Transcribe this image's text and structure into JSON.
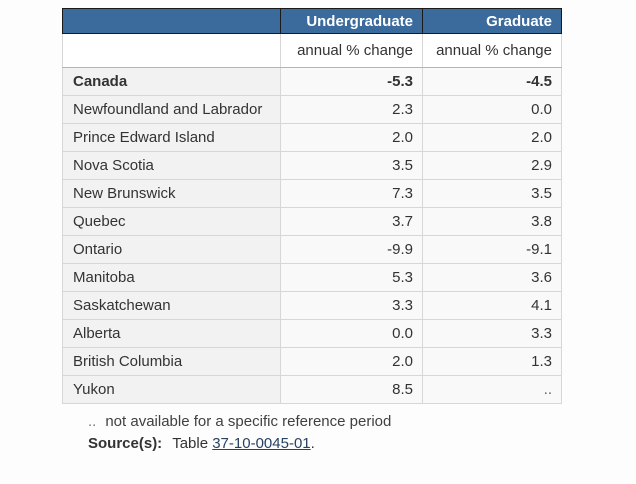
{
  "chart_data": {
    "type": "table",
    "columns": [
      "Undergraduate",
      "Graduate"
    ],
    "units": [
      "annual % change",
      "annual % change"
    ],
    "missing_value_symbol": "..",
    "rows": [
      {
        "geography": "Canada",
        "undergraduate": "-5.3",
        "graduate": "-4.5",
        "bold": true
      },
      {
        "geography": "Newfoundland and Labrador",
        "undergraduate": "2.3",
        "graduate": "0.0"
      },
      {
        "geography": "Prince Edward Island",
        "undergraduate": "2.0",
        "graduate": "2.0"
      },
      {
        "geography": "Nova Scotia",
        "undergraduate": "3.5",
        "graduate": "2.9"
      },
      {
        "geography": "New Brunswick",
        "undergraduate": "7.3",
        "graduate": "3.5"
      },
      {
        "geography": "Quebec",
        "undergraduate": "3.7",
        "graduate": "3.8"
      },
      {
        "geography": "Ontario",
        "undergraduate": "-9.9",
        "graduate": "-9.1"
      },
      {
        "geography": "Manitoba",
        "undergraduate": "5.3",
        "graduate": "3.6"
      },
      {
        "geography": "Saskatchewan",
        "undergraduate": "3.3",
        "graduate": "4.1"
      },
      {
        "geography": "Alberta",
        "undergraduate": "0.0",
        "graduate": "3.3"
      },
      {
        "geography": "British Columbia",
        "undergraduate": "2.0",
        "graduate": "1.3"
      },
      {
        "geography": "Yukon",
        "undergraduate": "8.5",
        "graduate": ".."
      }
    ]
  },
  "footer": {
    "note_symbol": "..",
    "note_text": "not available for a specific reference period",
    "source_label": "Source(s):",
    "source_prefix": "Table",
    "source_link": "37-10-0045-01",
    "source_suffix": "."
  },
  "colors": {
    "header_bg": "#3a6b9c",
    "header_text": "#ffffff",
    "header_border": "#1a1a1a",
    "stub_bg": "#f2f2f2",
    "cell_bg": "#f9f9f9",
    "row_border": "#d7d7d7",
    "units_bottom_border": "#b5b5b5",
    "link": "#284162",
    "text": "#333333",
    "muted": "#5f5f5f"
  }
}
